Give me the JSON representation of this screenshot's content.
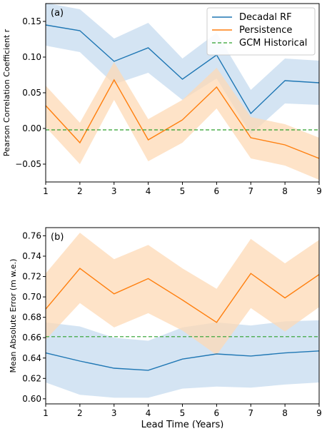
{
  "chart_data": [
    {
      "type": "line",
      "panel_label": "(a)",
      "xlabel": "",
      "ylabel": "Pearson Correlation Coefficient r",
      "x": [
        1,
        2,
        3,
        4,
        5,
        6,
        7,
        8,
        9
      ],
      "xlim": [
        1,
        9
      ],
      "ylim": [
        -0.075,
        0.175
      ],
      "yticks": [
        -0.05,
        0.0,
        0.05,
        0.1,
        0.15
      ],
      "ytick_labels": [
        "−0.05",
        "0.00",
        "0.05",
        "0.10",
        "0.15"
      ],
      "xtick_labels": [
        "1",
        "2",
        "3",
        "4",
        "5",
        "6",
        "7",
        "8",
        "9"
      ],
      "legend": {
        "placement": "top-right",
        "entries": [
          "Decadal RF",
          "Persistence",
          "GCM Historical"
        ]
      },
      "series": [
        {
          "name": "Decadal RF",
          "color": "#1f77b4",
          "band_color": "#c6dbef",
          "values": [
            0.145,
            0.137,
            0.094,
            0.113,
            0.069,
            0.103,
            0.021,
            0.067,
            0.064
          ],
          "band_low": [
            0.116,
            0.107,
            0.062,
            0.078,
            0.04,
            0.07,
            -0.008,
            0.035,
            0.033
          ],
          "band_high": [
            0.176,
            0.167,
            0.126,
            0.148,
            0.098,
            0.134,
            0.054,
            0.098,
            0.095
          ]
        },
        {
          "name": "Persistence",
          "color": "#ff7f0e",
          "band_color": "#fdd9b5",
          "values": [
            0.032,
            -0.02,
            0.068,
            -0.016,
            0.012,
            0.058,
            -0.013,
            -0.023,
            -0.042
          ],
          "band_low": [
            0.002,
            -0.05,
            0.04,
            -0.046,
            -0.02,
            0.028,
            -0.042,
            -0.052,
            -0.072
          ],
          "band_high": [
            0.06,
            0.008,
            0.093,
            0.013,
            0.04,
            0.085,
            0.016,
            0.006,
            -0.013
          ]
        },
        {
          "name": "GCM Historical",
          "color": "#2ca02c",
          "dashed": true,
          "values": [
            -0.002,
            -0.002,
            -0.002,
            -0.002,
            -0.002,
            -0.002,
            -0.002,
            -0.002,
            -0.002
          ]
        }
      ]
    },
    {
      "type": "line",
      "panel_label": "(b)",
      "xlabel": "Lead Time (Years)",
      "ylabel": "Mean Absolute Error (m w.e.)",
      "x": [
        1,
        2,
        3,
        4,
        5,
        6,
        7,
        8,
        9
      ],
      "xlim": [
        1,
        9
      ],
      "ylim": [
        0.595,
        0.768
      ],
      "yticks": [
        0.6,
        0.62,
        0.64,
        0.66,
        0.68,
        0.7,
        0.72,
        0.74,
        0.76
      ],
      "ytick_labels": [
        "0.60",
        "0.62",
        "0.64",
        "0.66",
        "0.68",
        "0.70",
        "0.72",
        "0.74",
        "0.76"
      ],
      "xtick_labels": [
        "1",
        "2",
        "3",
        "4",
        "5",
        "6",
        "7",
        "8",
        "9"
      ],
      "series": [
        {
          "name": "Decadal RF",
          "color": "#1f77b4",
          "band_color": "#c6dbef",
          "values": [
            0.645,
            0.637,
            0.63,
            0.628,
            0.639,
            0.644,
            0.642,
            0.645,
            0.647
          ],
          "band_low": [
            0.616,
            0.604,
            0.601,
            0.601,
            0.61,
            0.612,
            0.611,
            0.614,
            0.616
          ],
          "band_high": [
            0.675,
            0.671,
            0.66,
            0.657,
            0.67,
            0.675,
            0.672,
            0.676,
            0.677
          ]
        },
        {
          "name": "Persistence",
          "color": "#ff7f0e",
          "band_color": "#fdd9b5",
          "values": [
            0.688,
            0.728,
            0.703,
            0.718,
            0.697,
            0.675,
            0.723,
            0.699,
            0.722
          ],
          "band_low": [
            0.658,
            0.694,
            0.67,
            0.684,
            0.667,
            0.643,
            0.689,
            0.666,
            0.69
          ],
          "band_high": [
            0.723,
            0.763,
            0.737,
            0.751,
            0.728,
            0.708,
            0.757,
            0.733,
            0.756
          ]
        },
        {
          "name": "GCM Historical",
          "color": "#2ca02c",
          "dashed": true,
          "values": [
            0.661,
            0.661,
            0.661,
            0.661,
            0.661,
            0.661,
            0.661,
            0.661,
            0.661
          ]
        }
      ]
    }
  ]
}
